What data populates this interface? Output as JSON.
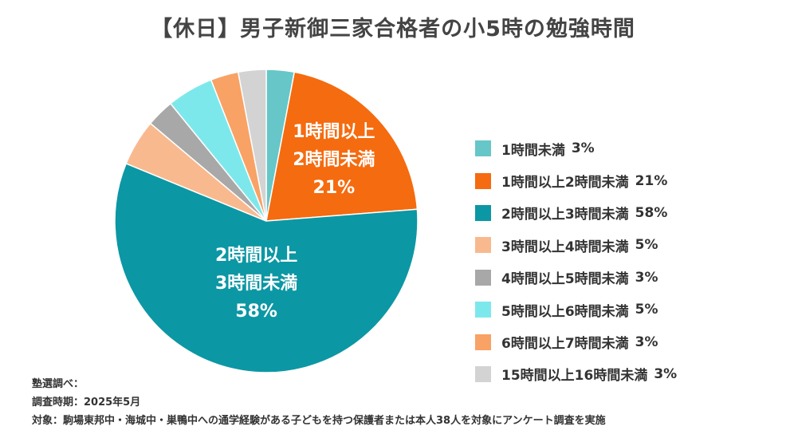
{
  "chart_data": {
    "type": "pie",
    "title": "【休日】男子新御三家合格者の小5時の勉強時間",
    "slices": [
      {
        "label": "1時間未満",
        "value": 3,
        "value_label": "3%",
        "color": "#66C6C8"
      },
      {
        "label": "1時間以上2時間未満",
        "value": 21,
        "value_label": "21%",
        "color": "#F56B0F",
        "on_chart": [
          "1時間以上",
          "2時間未満",
          "21%"
        ]
      },
      {
        "label": "2時間以上3時間未満",
        "value": 58,
        "value_label": "58%",
        "color": "#0C97A4",
        "on_chart": [
          "2時間以上",
          "3時間未満",
          "58%"
        ]
      },
      {
        "label": "3時間以上4時間未満",
        "value": 5,
        "value_label": "5%",
        "color": "#F9B98E"
      },
      {
        "label": "4時間以上5時間未満",
        "value": 3,
        "value_label": "3%",
        "color": "#A8A8A8"
      },
      {
        "label": "5時間以上6時間未満",
        "value": 5,
        "value_label": "5%",
        "color": "#7DE8EC"
      },
      {
        "label": "6時間以上7時間未満",
        "value": 3,
        "value_label": "3%",
        "color": "#F8A266"
      },
      {
        "label": "15時間以上16時間未満",
        "value": 3,
        "value_label": "3%",
        "color": "#D3D3D3"
      }
    ],
    "legend_position": "right"
  },
  "notes": [
    "塾選調べ：",
    "調査時期：2025年5月",
    "対象：駒場東邦中・海城中・巣鴨中への通学経験がある子どもを持つ保護者または本人38人を対象にアンケート調査を実施"
  ]
}
